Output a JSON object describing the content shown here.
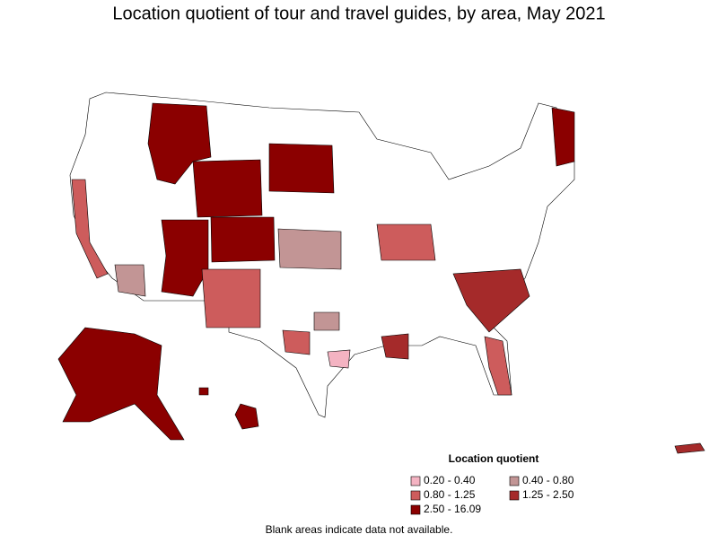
{
  "title": "Location quotient of tour and travel guides, by area, May 2021",
  "legend": {
    "title": "Location quotient",
    "items": [
      {
        "label": "0.20 - 0.40",
        "color": "#f4b3c2"
      },
      {
        "label": "0.40 - 0.80",
        "color": "#c29595"
      },
      {
        "label": "0.80 - 1.25",
        "color": "#cd5c5c"
      },
      {
        "label": "1.25 - 2.50",
        "color": "#a52a2a"
      },
      {
        "label": "2.50 - 16.09",
        "color": "#8b0000"
      }
    ]
  },
  "footnote": "Blank areas indicate data not available."
}
